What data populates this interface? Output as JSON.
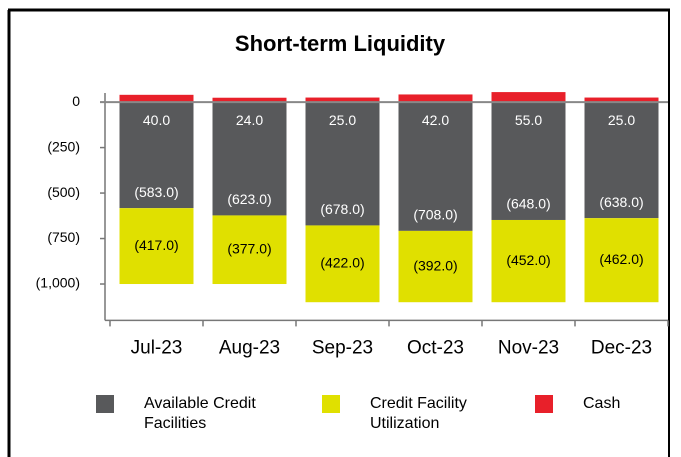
{
  "chart_data": {
    "type": "stacked-bar",
    "title": "Short-term Liquidity",
    "categories": [
      "Jul-23",
      "Aug-23",
      "Sep-23",
      "Oct-23",
      "Nov-23",
      "Dec-23"
    ],
    "series": [
      {
        "name": "Available Credit Facilities",
        "color": "#58595b",
        "values": [
          -583,
          -623,
          -678,
          -708,
          -648,
          -638
        ],
        "value_labels": [
          "(583.0)",
          "(623.0)",
          "(678.0)",
          "(708.0)",
          "(648.0)",
          "(638.0)"
        ]
      },
      {
        "name": "Credit Facility Utilization",
        "color": "#e0e000",
        "values": [
          -417,
          -377,
          -422,
          -392,
          -452,
          -462
        ],
        "value_labels": [
          "(417.0)",
          "(377.0)",
          "(422.0)",
          "(392.0)",
          "(452.0)",
          "(462.0)"
        ]
      },
      {
        "name": "Cash",
        "color": "#e8202a",
        "values": [
          40,
          24,
          25,
          42,
          55,
          25
        ],
        "value_labels": [
          "40.0",
          "24.0",
          "25.0",
          "42.0",
          "55.0",
          "25.0"
        ]
      }
    ],
    "ylim": [
      -1200,
      50
    ],
    "yticks": [
      0,
      {
        "value": -250,
        "label": "(250)"
      },
      {
        "value": -500,
        "label": "(500)"
      },
      {
        "value": -750,
        "label": "(750)"
      },
      {
        "value": -1000,
        "label": "(1,000)"
      }
    ],
    "legend": "bottom"
  }
}
